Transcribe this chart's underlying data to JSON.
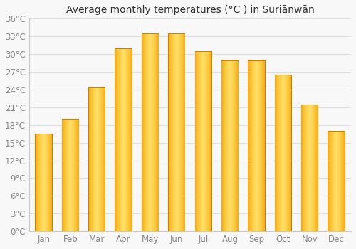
{
  "title": "Average monthly temperatures (°C ) in Suriānwān",
  "months": [
    "Jan",
    "Feb",
    "Mar",
    "Apr",
    "May",
    "Jun",
    "Jul",
    "Aug",
    "Sep",
    "Oct",
    "Nov",
    "Dec"
  ],
  "values": [
    16.5,
    19.0,
    24.5,
    31.0,
    33.5,
    33.5,
    30.5,
    29.0,
    29.0,
    26.5,
    21.5,
    17.0
  ],
  "ylim": [
    0,
    36
  ],
  "yticks": [
    0,
    3,
    6,
    9,
    12,
    15,
    18,
    21,
    24,
    27,
    30,
    33,
    36
  ],
  "bar_color_center": "#FFE066",
  "bar_color_edge": "#F5A000",
  "bar_border_color": "#CC8000",
  "background_color": "#f8f8f8",
  "grid_color": "#e0e0e0",
  "title_fontsize": 10,
  "tick_fontsize": 8.5,
  "tick_color": "#888888"
}
